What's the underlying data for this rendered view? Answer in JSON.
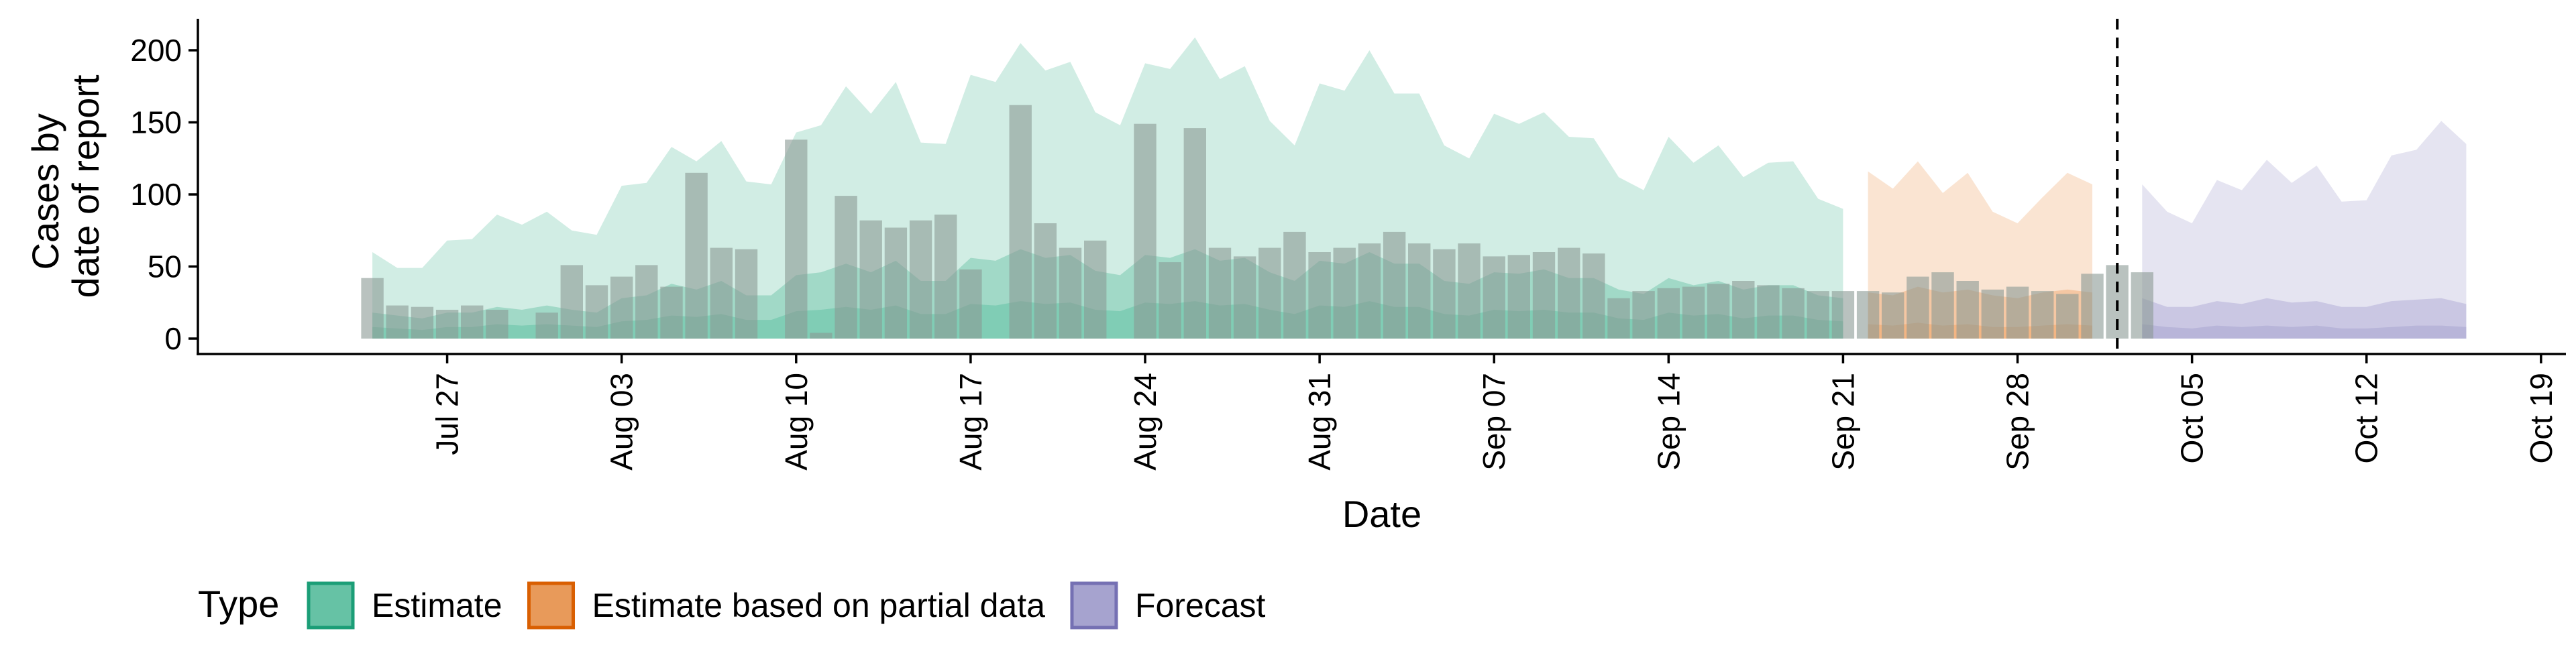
{
  "chart_data": {
    "type": "area",
    "xlabel": "Date",
    "ylabel_lines": [
      "Cases by",
      "date of report"
    ],
    "ylim": [
      0,
      220
    ],
    "yticks": [
      0,
      50,
      100,
      150,
      200
    ],
    "xlim": [
      "2020-07-17",
      "2020-10-20"
    ],
    "xticks": [
      {
        "date": "2020-07-27",
        "label": "Jul 27"
      },
      {
        "date": "2020-08-03",
        "label": "Aug 03"
      },
      {
        "date": "2020-08-10",
        "label": "Aug 10"
      },
      {
        "date": "2020-08-17",
        "label": "Aug 17"
      },
      {
        "date": "2020-08-24",
        "label": "Aug 24"
      },
      {
        "date": "2020-08-31",
        "label": "Aug 31"
      },
      {
        "date": "2020-09-07",
        "label": "Sep 07"
      },
      {
        "date": "2020-09-14",
        "label": "Sep 14"
      },
      {
        "date": "2020-09-21",
        "label": "Sep 21"
      },
      {
        "date": "2020-09-28",
        "label": "Sep 28"
      },
      {
        "date": "2020-10-05",
        "label": "Oct 05"
      },
      {
        "date": "2020-10-12",
        "label": "Oct 12"
      },
      {
        "date": "2020-10-19",
        "label": "Oct 19"
      }
    ],
    "vline_date": "2020-10-02",
    "grid": false,
    "legend": {
      "position": "bottom",
      "title": "Type",
      "entries": [
        {
          "key": "estimate",
          "label": "Estimate",
          "fill": "#66c2a5",
          "stroke": "#1b9e77"
        },
        {
          "key": "partial",
          "label": "Estimate based on partial data",
          "fill": "#e89a5a",
          "stroke": "#d95f02"
        },
        {
          "key": "forecast",
          "label": "Forecast",
          "fill": "#a6a3cf",
          "stroke": "#7570b3"
        }
      ]
    },
    "colors": {
      "estimate": "#66c2a5",
      "partial": "#f0a56a",
      "forecast": "#a9a5d2",
      "bars": "#8a9a94",
      "vline": "#000000"
    },
    "report_bars": {
      "start_date": "2020-07-24",
      "values": [
        42,
        23,
        22,
        20,
        23,
        20,
        0,
        18,
        51,
        37,
        43,
        51,
        36,
        115,
        63,
        62,
        0,
        138,
        4,
        99,
        82,
        77,
        82,
        86,
        48,
        0,
        162,
        80,
        63,
        68,
        0,
        149,
        53,
        146,
        63,
        57,
        63,
        74,
        60,
        63,
        66,
        74,
        66,
        62,
        66,
        57,
        58,
        60,
        63,
        59,
        28,
        33,
        35,
        36,
        38,
        40,
        37,
        35,
        33,
        33,
        33,
        32,
        43,
        46,
        40,
        34,
        36,
        33,
        31,
        45,
        51,
        46
      ]
    },
    "series": [
      {
        "name": "Estimate",
        "key": "estimate",
        "start_date": "2020-07-24",
        "upper90": [
          60,
          49,
          49,
          68,
          69,
          86,
          79,
          88,
          75,
          72,
          106,
          108,
          133,
          123,
          137,
          109,
          107,
          143,
          148,
          175,
          156,
          178,
          136,
          135,
          183,
          178,
          205,
          186,
          192,
          157,
          148,
          191,
          187,
          209,
          180,
          189,
          151,
          134,
          177,
          172,
          200,
          170,
          170,
          134,
          125,
          156,
          149,
          157,
          140,
          139,
          112,
          103,
          140,
          122,
          134,
          112,
          122,
          123,
          97,
          90
        ],
        "upper50": [
          18,
          16,
          14,
          18,
          18,
          22,
          20,
          23,
          20,
          18,
          28,
          30,
          38,
          34,
          40,
          30,
          30,
          44,
          46,
          52,
          46,
          54,
          40,
          40,
          56,
          54,
          62,
          56,
          58,
          47,
          44,
          58,
          56,
          62,
          54,
          56,
          46,
          40,
          54,
          52,
          60,
          52,
          52,
          40,
          38,
          46,
          45,
          48,
          42,
          42,
          34,
          31,
          42,
          37,
          40,
          34,
          37,
          37,
          30,
          28
        ],
        "upper20": [
          8,
          7,
          6,
          8,
          8,
          10,
          9,
          10,
          9,
          8,
          12,
          13,
          16,
          15,
          17,
          13,
          13,
          19,
          20,
          22,
          20,
          23,
          17,
          17,
          24,
          23,
          26,
          24,
          25,
          20,
          19,
          25,
          24,
          26,
          23,
          24,
          20,
          17,
          23,
          22,
          26,
          22,
          22,
          17,
          16,
          20,
          19,
          20,
          18,
          18,
          14,
          13,
          18,
          16,
          17,
          14,
          16,
          16,
          13,
          12
        ],
        "lower": [
          0,
          0,
          0,
          0,
          0,
          0,
          0,
          0,
          0,
          0,
          0,
          0,
          0,
          0,
          0,
          0,
          0,
          0,
          0,
          0,
          0,
          0,
          0,
          0,
          0,
          0,
          0,
          0,
          0,
          0,
          0,
          0,
          0,
          0,
          0,
          0,
          0,
          0,
          0,
          0,
          0,
          0,
          0,
          0,
          0,
          0,
          0,
          0,
          0,
          0,
          0,
          0,
          0,
          0,
          0,
          0,
          0,
          0,
          0,
          0
        ]
      },
      {
        "name": "Estimate based on partial data",
        "key": "partial",
        "start_date": "2020-09-22",
        "upper90": [
          116,
          104,
          123,
          101,
          115,
          88,
          80,
          98,
          115,
          107
        ],
        "upper50": [
          32,
          30,
          36,
          32,
          34,
          30,
          28,
          32,
          34,
          32
        ],
        "upper20": [
          10,
          9,
          11,
          9,
          10,
          8,
          8,
          9,
          10,
          9
        ],
        "lower": [
          0,
          0,
          0,
          0,
          0,
          0,
          0,
          0,
          0,
          0
        ]
      },
      {
        "name": "Forecast",
        "key": "forecast",
        "start_date": "2020-10-03",
        "upper90": [
          107,
          88,
          80,
          110,
          103,
          124,
          108,
          120,
          95,
          96,
          127,
          131,
          151,
          135
        ],
        "upper50": [
          28,
          22,
          22,
          26,
          24,
          28,
          25,
          26,
          22,
          22,
          26,
          27,
          28,
          24
        ],
        "upper20": [
          10,
          8,
          7,
          9,
          8,
          9,
          8,
          9,
          7,
          7,
          8,
          9,
          9,
          8
        ],
        "lower": [
          0,
          0,
          0,
          0,
          0,
          0,
          0,
          0,
          0,
          0,
          0,
          0,
          0,
          0
        ]
      }
    ]
  }
}
